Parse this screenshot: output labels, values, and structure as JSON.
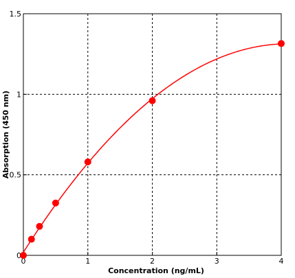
{
  "chart_data": {
    "type": "scatter",
    "title": "",
    "xlabel": "Concentration (ng/mL)",
    "ylabel": "Absorption (450 nm)",
    "xlim": [
      0,
      4
    ],
    "ylim": [
      0,
      1.5
    ],
    "x_ticks": [
      0,
      1,
      2,
      3,
      4
    ],
    "x_tick_labels": [
      "0",
      "1",
      "2",
      "3",
      "4"
    ],
    "y_ticks": [
      0,
      0.5,
      1,
      1.5
    ],
    "y_tick_labels": [
      "0",
      "0.5",
      "1",
      "1.5"
    ],
    "grid": true,
    "grid_style": "dashed",
    "legend": "none",
    "series": [
      {
        "x": [
          0,
          0.125,
          0.25,
          0.5,
          1,
          2,
          4
        ],
        "y": [
          0.0,
          0.1,
          0.18,
          0.325,
          0.58,
          0.96,
          1.315
        ],
        "fit_curve": true,
        "color": "#ff0000"
      }
    ]
  }
}
